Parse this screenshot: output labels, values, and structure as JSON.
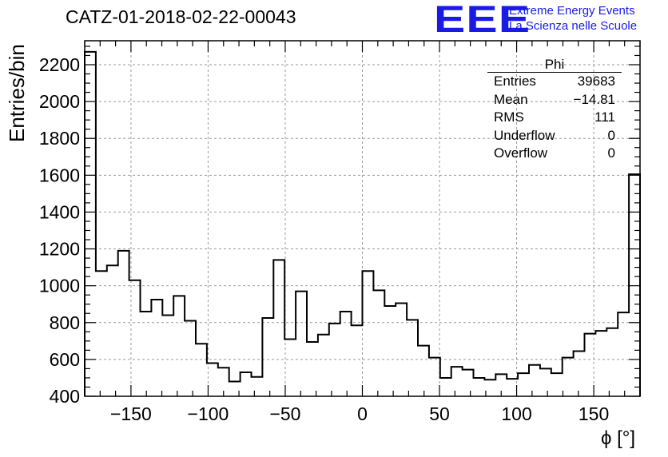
{
  "header": {
    "title": "CATZ-01-2018-02-22-00043",
    "logo": "EEE",
    "brand_line1": "Extreme Energy Events",
    "brand_line2": "La Scienza nelle Scuole"
  },
  "stats_box": {
    "name": "Phi",
    "rows": [
      {
        "label": "Entries",
        "value": "39683"
      },
      {
        "label": "Mean",
        "value": "−14.81"
      },
      {
        "label": "RMS",
        "value": "111"
      },
      {
        "label": "Underflow",
        "value": "0"
      },
      {
        "label": "Overflow",
        "value": "0"
      }
    ]
  },
  "chart_data": {
    "type": "bar",
    "histogram_style": "step",
    "title": "CATZ-01-2018-02-22-00043",
    "xlabel": "ϕ [°]",
    "ylabel": "Entries/bin",
    "xlim": [
      -180,
      180
    ],
    "ylim": [
      400,
      2330
    ],
    "bin_width": 7.2,
    "xticks": [
      -150,
      -100,
      -50,
      0,
      50,
      100,
      150
    ],
    "xtick_labels": [
      "−150",
      "−100",
      "−50",
      "0",
      "50",
      "100",
      "150"
    ],
    "yticks": [
      400,
      600,
      800,
      1000,
      1200,
      1400,
      1600,
      1800,
      2000,
      2200
    ],
    "ytick_labels": [
      "400",
      "600",
      "800",
      "1000",
      "1200",
      "1400",
      "1600",
      "1800",
      "2000",
      "2200"
    ],
    "grid": true,
    "values": [
      2270,
      1080,
      1110,
      1190,
      1030,
      860,
      925,
      840,
      945,
      810,
      685,
      580,
      555,
      480,
      530,
      505,
      825,
      1140,
      710,
      970,
      695,
      735,
      795,
      860,
      785,
      1080,
      975,
      890,
      905,
      815,
      675,
      610,
      500,
      560,
      545,
      500,
      490,
      520,
      495,
      525,
      570,
      550,
      525,
      610,
      645,
      740,
      755,
      770,
      855,
      1605
    ],
    "colors": {
      "line": "#000000",
      "grid": "#9a9a9a",
      "brand": "#1a1ae6"
    }
  }
}
